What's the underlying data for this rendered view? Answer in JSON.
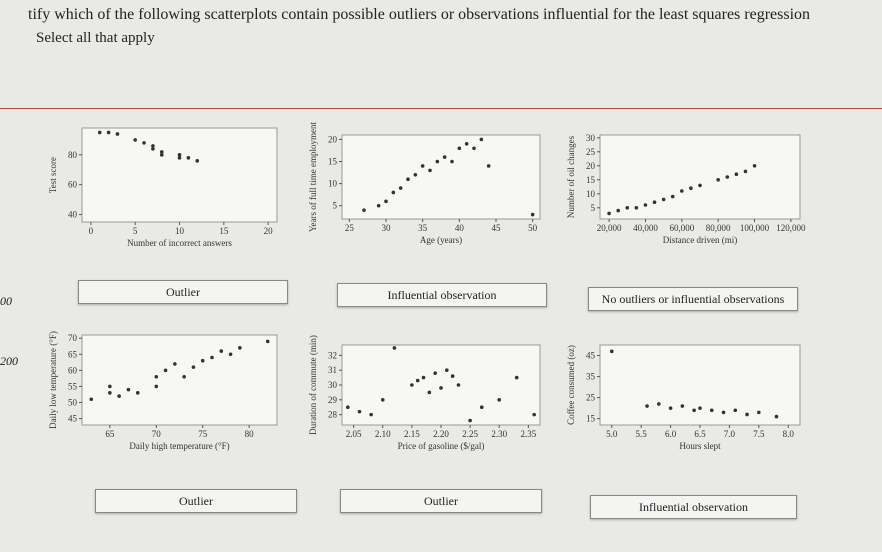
{
  "question": "tify which of the following scatterplots contain possible outliers or observations influential for the least squares regression",
  "instruction": "Select all that apply",
  "side_labels": [
    "00",
    "200"
  ],
  "plots": [
    {
      "x_label": "Number of incorrect answers",
      "y_label": "Test score",
      "xlim": [
        -1,
        21
      ],
      "ylim": [
        35,
        98
      ],
      "xticks": [
        0,
        5,
        10,
        15,
        20
      ],
      "yticks": [
        40,
        60,
        80
      ],
      "x": [
        1,
        2,
        3,
        5,
        6,
        7,
        7,
        8,
        8,
        10,
        10,
        11,
        12
      ],
      "y": [
        95,
        95,
        94,
        90,
        88,
        86,
        84,
        82,
        80,
        80,
        78,
        78,
        76
      ]
    },
    {
      "x_label": "Age (years)",
      "y_label": "Years of full time employment",
      "xlim": [
        24,
        51
      ],
      "ylim": [
        2,
        21
      ],
      "xticks": [
        25,
        30,
        35,
        40,
        45,
        50
      ],
      "yticks": [
        5,
        10,
        15,
        20
      ],
      "x": [
        27,
        29,
        30,
        31,
        32,
        33,
        34,
        35,
        36,
        37,
        38,
        39,
        40,
        41,
        42,
        43,
        44,
        50
      ],
      "y": [
        4,
        5,
        6,
        8,
        9,
        11,
        12,
        14,
        13,
        15,
        16,
        15,
        18,
        19,
        18,
        20,
        14,
        3
      ]
    },
    {
      "x_label": "Distance driven (mi)",
      "y_label": "Number of oil changes",
      "xlim": [
        15000,
        125000
      ],
      "ylim": [
        1,
        31
      ],
      "xticks": [
        {
          "value": 20000,
          "label": "20,000"
        },
        {
          "value": 40000,
          "label": "40,000"
        },
        {
          "value": 60000,
          "label": "60,000"
        },
        {
          "value": 80000,
          "label": "80,000"
        },
        {
          "value": 100000,
          "label": "100,000"
        },
        {
          "value": 120000,
          "label": "120,000"
        }
      ],
      "yticks": [
        5,
        10,
        15,
        20,
        25,
        30
      ],
      "x": [
        20000,
        25000,
        30000,
        35000,
        40000,
        45000,
        50000,
        55000,
        60000,
        65000,
        70000,
        80000,
        85000,
        90000,
        95000,
        100000
      ],
      "y": [
        3,
        4,
        5,
        5,
        6,
        7,
        8,
        9,
        11,
        12,
        13,
        15,
        16,
        17,
        18,
        20
      ]
    },
    {
      "x_label": "Daily high temperature (°F)",
      "y_label": "Daily low temperature (°F)",
      "xlim": [
        62,
        83
      ],
      "ylim": [
        43,
        71
      ],
      "xticks": [
        65,
        70,
        75,
        80
      ],
      "yticks": [
        45,
        50,
        55,
        60,
        65,
        70
      ],
      "x": [
        63,
        65,
        65,
        66,
        67,
        68,
        70,
        70,
        71,
        72,
        73,
        74,
        75,
        76,
        77,
        78,
        79,
        82
      ],
      "y": [
        51,
        55,
        53,
        52,
        54,
        53,
        58,
        55,
        60,
        62,
        58,
        61,
        63,
        64,
        66,
        65,
        67,
        69
      ]
    },
    {
      "x_label": "Price of gasoline ($/gal)",
      "y_label": "Duration of commute (min)",
      "xlim": [
        2.03,
        2.37
      ],
      "ylim": [
        27.3,
        32.7
      ],
      "xticks": [
        2.05,
        {
          "value": 2.1,
          "label": "2.10"
        },
        2.15,
        {
          "value": 2.2,
          "label": "2.20"
        },
        2.25,
        {
          "value": 2.3,
          "label": "2.30"
        },
        2.35
      ],
      "yticks": [
        28,
        29,
        30,
        31,
        32
      ],
      "x": [
        2.04,
        2.06,
        2.08,
        2.1,
        2.12,
        2.15,
        2.16,
        2.17,
        2.18,
        2.19,
        2.2,
        2.21,
        2.22,
        2.23,
        2.25,
        2.27,
        2.3,
        2.33,
        2.36
      ],
      "y": [
        28.5,
        28.2,
        28,
        29,
        32.5,
        30,
        30.3,
        30.5,
        29.5,
        30.8,
        29.8,
        31,
        30.6,
        30,
        27.6,
        28.5,
        29,
        30.5,
        28
      ]
    },
    {
      "x_label": "Hours slept",
      "y_label": "Coffee consumed (oz)",
      "xlim": [
        4.8,
        8.2
      ],
      "ylim": [
        12,
        50
      ],
      "xticks": [
        {
          "value": 5,
          "label": "5.0"
        },
        5.5,
        {
          "value": 6,
          "label": "6.0"
        },
        6.5,
        {
          "value": 7,
          "label": "7.0"
        },
        7.5,
        {
          "value": 8,
          "label": "8.0"
        }
      ],
      "yticks": [
        15,
        25,
        35,
        45
      ],
      "x": [
        5,
        5.6,
        5.8,
        6,
        6.2,
        6.4,
        6.5,
        6.7,
        6.9,
        7.1,
        7.3,
        7.5,
        7.8
      ],
      "y": [
        47,
        21,
        22,
        20,
        21,
        19,
        20,
        19,
        18,
        19,
        17,
        18,
        16
      ]
    }
  ],
  "answers": [
    "Outlier",
    "Influential observation",
    "No outliers or influential observations",
    "Outlier",
    "Outlier",
    "Influential observation"
  ]
}
